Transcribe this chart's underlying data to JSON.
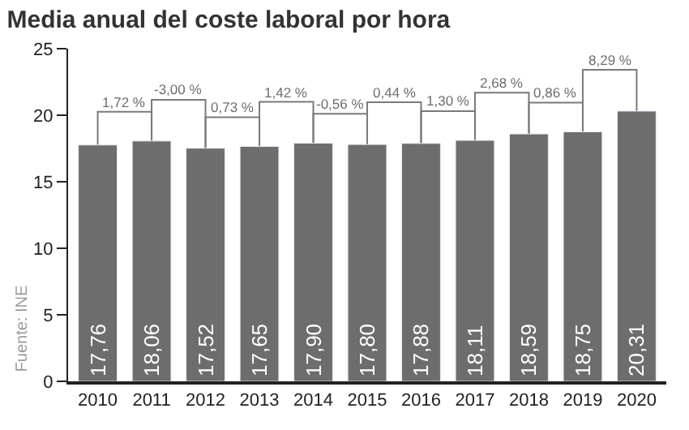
{
  "chart_data": {
    "type": "bar",
    "title": "Media anual del coste laboral por hora",
    "categories": [
      "2010",
      "2011",
      "2012",
      "2013",
      "2014",
      "2015",
      "2016",
      "2017",
      "2018",
      "2019",
      "2020"
    ],
    "values": [
      17.76,
      18.06,
      17.52,
      17.65,
      17.9,
      17.8,
      17.88,
      18.11,
      18.59,
      18.75,
      20.31
    ],
    "value_labels": [
      "17,76",
      "18,06",
      "17,52",
      "17,65",
      "17,90",
      "17,80",
      "17,88",
      "18,11",
      "18,59",
      "18,75",
      "20,31"
    ],
    "color": "#6d6d6d",
    "ylim": [
      0,
      25
    ],
    "yticks": [
      0,
      5,
      10,
      15,
      20,
      25
    ],
    "grid": false,
    "legend": false,
    "annotations": [
      "Fuente: INE",
      "1,72 %",
      "-3,00 %",
      "0,73 %",
      "1,42 %",
      "-0,56 %",
      "0,44 %",
      "1,30 %",
      "2,68 %",
      "0,86 %",
      "8,29 %"
    ]
  }
}
